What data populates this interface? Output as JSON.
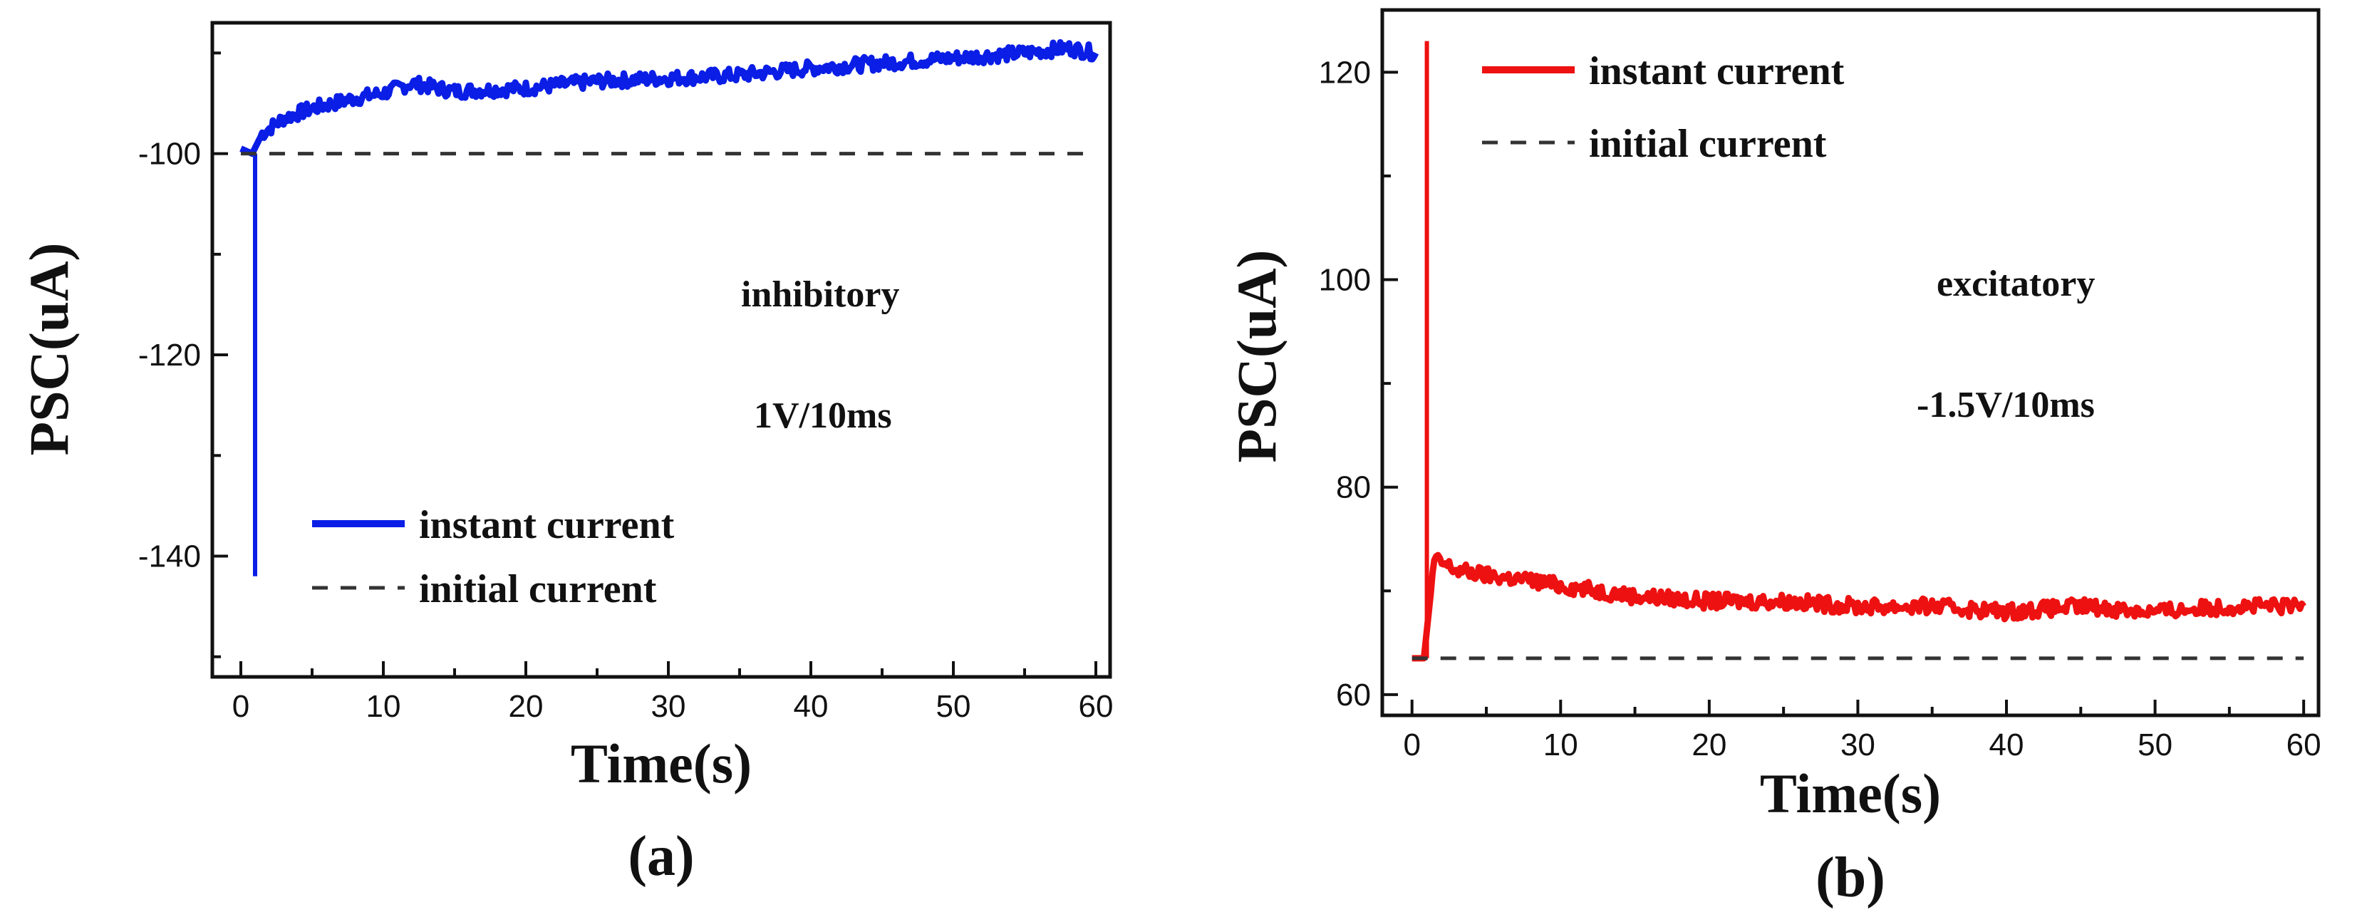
{
  "chart_data": [
    {
      "type": "line",
      "panel_label": "(a)",
      "xlabel": "Time(s)",
      "ylabel": "PSC(uA)",
      "xlim": [
        -2,
        61
      ],
      "ylim": [
        -152,
        -87
      ],
      "x_major_ticks": [
        0,
        10,
        20,
        30,
        40,
        50,
        60
      ],
      "x_tick_labels": [
        "0",
        "10",
        "20",
        "30",
        "40",
        "50",
        "60"
      ],
      "y_major_ticks": [
        -140,
        -120,
        -100
      ],
      "y_tick_labels": [
        "-140",
        "-120",
        "-100"
      ],
      "annotations": [
        "inhibitory",
        "1V/10ms"
      ],
      "legend": [
        "instant current",
        "initial  current"
      ],
      "series": [
        {
          "name": "instant current",
          "color": "#0a1ee6",
          "style": "solid",
          "spike_time": 1,
          "spike_value": -142,
          "x": [
            0,
            0.8,
            1.5,
            3,
            5,
            8,
            10,
            12,
            15,
            20,
            25,
            30,
            35,
            40,
            45,
            50,
            55,
            58,
            60
          ],
          "y": [
            -99.5,
            -100,
            -98,
            -96.5,
            -95.5,
            -94.5,
            -94,
            -93,
            -93.8,
            -93.5,
            -92.8,
            -92.5,
            -92.2,
            -91.5,
            -91,
            -90.5,
            -90,
            -89.5,
            -90
          ]
        },
        {
          "name": "initial  current",
          "color": "#333333",
          "style": "dashed",
          "x": [
            0,
            60
          ],
          "y": [
            -100,
            -100
          ]
        }
      ]
    },
    {
      "type": "line",
      "panel_label": "(b)",
      "xlabel": "Time(s)",
      "ylabel": "PSC(uA)",
      "xlim": [
        -2,
        61
      ],
      "ylim": [
        58,
        126
      ],
      "x_major_ticks": [
        0,
        10,
        20,
        30,
        40,
        50,
        60
      ],
      "x_tick_labels": [
        "0",
        "10",
        "20",
        "30",
        "40",
        "50",
        "60"
      ],
      "y_major_ticks": [
        60,
        80,
        100,
        120
      ],
      "y_tick_labels": [
        "60",
        "80",
        "100",
        "120"
      ],
      "annotations": [
        "excitatory",
        "-1.5V/10ms"
      ],
      "legend": [
        "instant current",
        "initial  current"
      ],
      "series": [
        {
          "name": "instant current",
          "color": "#ee1111",
          "style": "solid",
          "spike_time": 1,
          "spike_value": 123,
          "x": [
            0,
            0.8,
            1.5,
            3,
            5,
            8,
            10,
            15,
            20,
            25,
            30,
            35,
            40,
            45,
            50,
            55,
            60
          ],
          "y": [
            63.5,
            63.5,
            73,
            72,
            71.5,
            71,
            70.5,
            69.5,
            69,
            69,
            68.5,
            68.5,
            68,
            68.5,
            68,
            68.5,
            68.5
          ]
        },
        {
          "name": "initial  current",
          "color": "#333333",
          "style": "dashed",
          "x": [
            0,
            60
          ],
          "y": [
            63.5,
            63.5
          ]
        }
      ]
    }
  ]
}
